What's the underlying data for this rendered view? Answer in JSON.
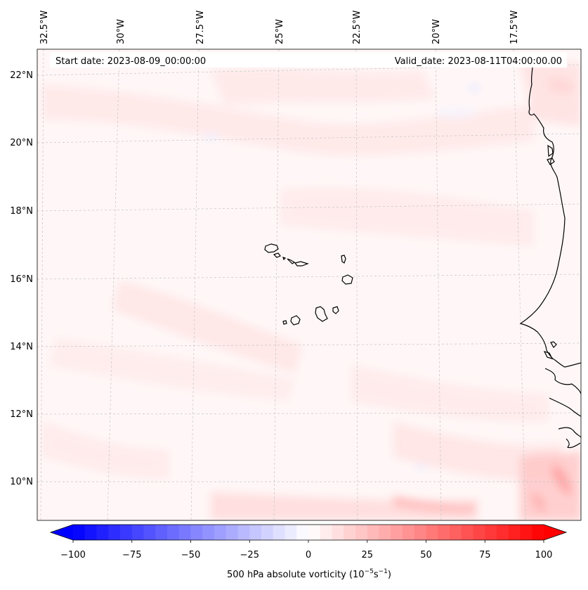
{
  "header": {
    "start_date": "Start date: 2023-08-09_00:00:00",
    "valid_date": "Valid_date: 2023-08-11T04:00:00.00"
  },
  "map": {
    "lon_labels": [
      "32.5°W",
      "30°W",
      "27.5°W",
      "25°W",
      "22.5°W",
      "20°W",
      "17.5°W"
    ],
    "lat_labels": [
      "22°N",
      "20°N",
      "18°N",
      "16°N",
      "14°N",
      "12°N",
      "10°N"
    ],
    "field": "500 hPa absolute vorticity",
    "colors": {
      "negative": "#0000ff",
      "neutral": "#ffffff",
      "positive": "#ff0000",
      "coastline": "#000000",
      "gridline": "#bbbbbb"
    }
  },
  "colorbar": {
    "ticks": [
      "−100",
      "−75",
      "−50",
      "−25",
      "0",
      "25",
      "50",
      "75",
      "100"
    ],
    "min": -100,
    "max": 100,
    "label_prefix": "500 hPa absolute vorticity (10",
    "label_exp1": "−5",
    "label_mid": "s",
    "label_exp2": "−1",
    "label_suffix": ")"
  }
}
